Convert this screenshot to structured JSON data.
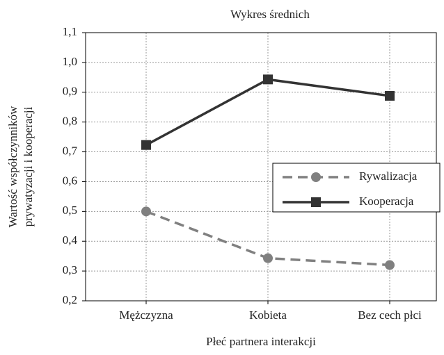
{
  "chart_data": {
    "type": "line",
    "title": "Wykres średnich",
    "xlabel": "Płeć partnera interakcji",
    "ylabel": [
      "Wartość współczynników",
      "prywatyzacji i kooperacji"
    ],
    "categories": [
      "Mężczyzna",
      "Kobieta",
      "Bez cech płci"
    ],
    "series": [
      {
        "name": "Rywalizacja",
        "color": "#808080",
        "linestyle": "dashed",
        "marker": "circle",
        "values": [
          0.5,
          0.343,
          0.32
        ]
      },
      {
        "name": "Kooperacja",
        "color": "#333333",
        "linestyle": "solid",
        "marker": "square",
        "values": [
          0.723,
          0.943,
          0.888
        ]
      }
    ],
    "ylim": [
      0.2,
      1.1
    ],
    "yticks": [
      {
        "value": 0.2,
        "label": "0,2"
      },
      {
        "value": 0.3,
        "label": "0,3"
      },
      {
        "value": 0.4,
        "label": "0,4"
      },
      {
        "value": 0.5,
        "label": "0,5"
      },
      {
        "value": 0.6,
        "label": "0,6"
      },
      {
        "value": 0.7,
        "label": "0,7"
      },
      {
        "value": 0.8,
        "label": "0,8"
      },
      {
        "value": 0.9,
        "label": "0,9"
      },
      {
        "value": 1.0,
        "label": "1,0"
      },
      {
        "value": 1.1,
        "label": "1,1"
      }
    ],
    "grid": true,
    "legend_position": "center right"
  }
}
